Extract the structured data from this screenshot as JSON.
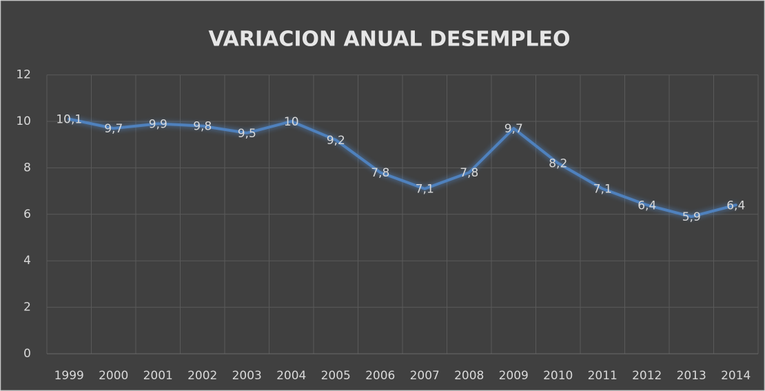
{
  "chart_data": {
    "type": "line",
    "title": "VARIACION ANUAL DESEMPLEO",
    "categories": [
      "1999",
      "2000",
      "2001",
      "2002",
      "2003",
      "2004",
      "2005",
      "2006",
      "2007",
      "2008",
      "2009",
      "2010",
      "2011",
      "2012",
      "2013",
      "2014"
    ],
    "values": [
      10.1,
      9.7,
      9.9,
      9.8,
      9.5,
      10,
      9.2,
      7.8,
      7.1,
      7.8,
      9.7,
      8.2,
      7.1,
      6.4,
      5.9,
      6.4
    ],
    "value_labels": [
      "10,1",
      "9,7",
      "9,9",
      "9,8",
      "9,5",
      "10",
      "9,2",
      "7,8",
      "7,1",
      "7,8",
      "9,7",
      "8,2",
      "7,1",
      "6,4",
      "5,9",
      "6,4"
    ],
    "color": "#4f81bd",
    "ylim": [
      0,
      12
    ],
    "yticks": [
      0,
      2,
      4,
      6,
      8,
      10,
      12
    ],
    "grid": true
  }
}
